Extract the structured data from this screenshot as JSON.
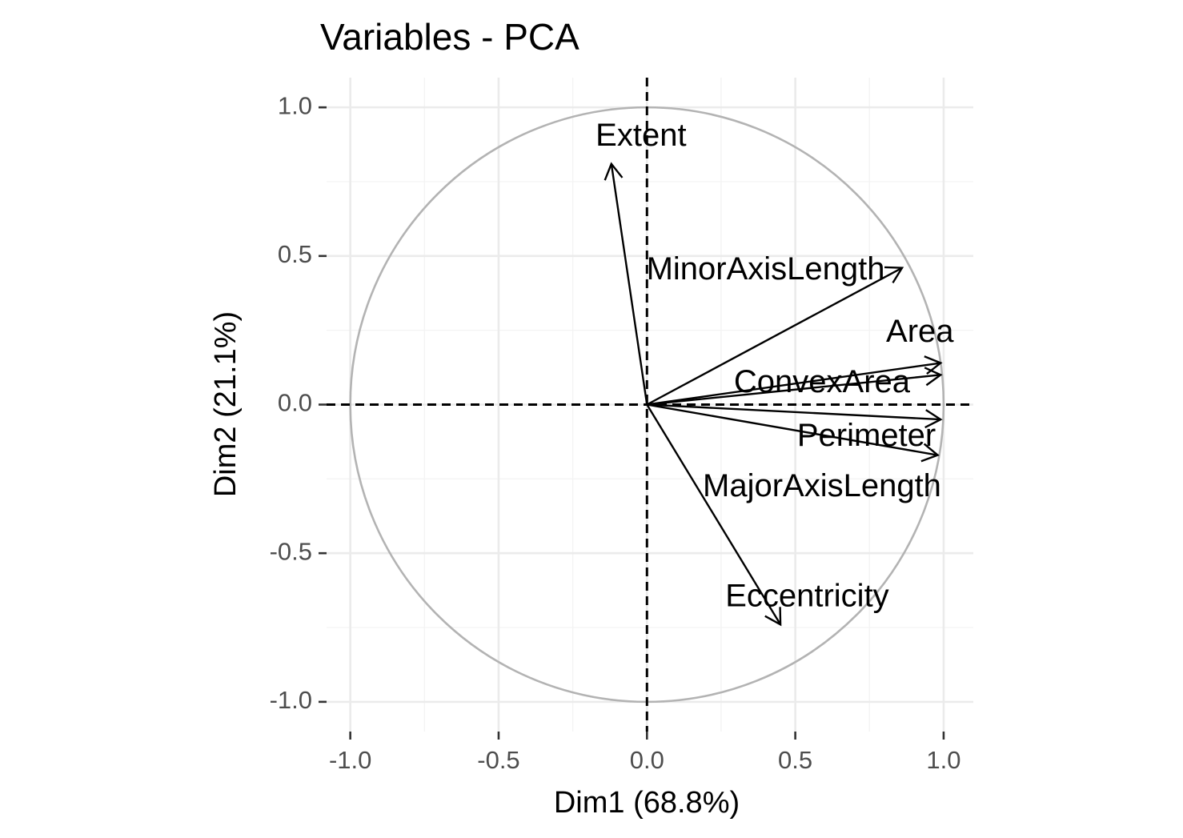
{
  "chart_data": {
    "type": "pca-variable-correlation-circle",
    "title": "Variables - PCA",
    "xlabel": "Dim1 (68.8%)",
    "ylabel": "Dim2 (21.1%)",
    "xlim": [
      -1.08,
      1.1
    ],
    "ylim": [
      -1.1,
      1.1
    ],
    "x_ticks": [
      -1.0,
      -0.5,
      0.0,
      0.5,
      1.0
    ],
    "y_ticks": [
      -1.0,
      -0.5,
      0.0,
      0.5,
      1.0
    ],
    "x_tick_labels": [
      "-1.0",
      "-0.5",
      "0.0",
      "0.5",
      "1.0"
    ],
    "y_tick_labels": [
      "-1.0",
      "-0.5",
      "0.0",
      "0.5",
      "1.0"
    ],
    "grid": true,
    "unit_circle": true,
    "colors": {
      "arrow": "#000000",
      "circle": "#b3b3b3",
      "reference_lines": "#000000",
      "grid": "#ebebeb"
    },
    "variables": [
      {
        "name": "Area",
        "x": 0.99,
        "y": 0.14,
        "label_x": 0.92,
        "label_y": 0.24
      },
      {
        "name": "MajorAxisLength",
        "x": 0.98,
        "y": -0.17,
        "label_x": 0.59,
        "label_y": -0.28
      },
      {
        "name": "MinorAxisLength",
        "x": 0.86,
        "y": 0.46,
        "label_x": 0.4,
        "label_y": 0.45
      },
      {
        "name": "Eccentricity",
        "x": 0.45,
        "y": -0.74,
        "label_x": 0.54,
        "label_y": -0.65
      },
      {
        "name": "ConvexArea",
        "x": 0.99,
        "y": 0.1,
        "label_x": 0.59,
        "label_y": 0.07
      },
      {
        "name": "Extent",
        "x": -0.12,
        "y": 0.81,
        "label_x": -0.02,
        "label_y": 0.9
      },
      {
        "name": "Perimeter",
        "x": 0.99,
        "y": -0.05,
        "label_x": 0.74,
        "label_y": -0.11
      }
    ]
  }
}
